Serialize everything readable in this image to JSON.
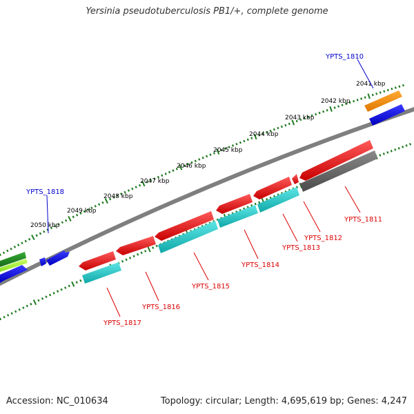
{
  "title": "Yersinia pseudotuberculosis PB1/+, complete genome",
  "footer": {
    "accession": "Accession: NC_010634",
    "summary": "Topology: circular; Length: 4,695,619 bp; Genes: 4,247"
  },
  "colors": {
    "backbone": "#7f7f7f",
    "tick": "#1f7a1f",
    "label_forward": "#0000cc",
    "label_reverse": "#dd0000"
  },
  "ruler": {
    "unit": "kbp",
    "labels": [
      "2041 kbp",
      "2042 kbp",
      "2043 kbp",
      "2044 kbp",
      "2045 kbp",
      "2046 kbp",
      "2047 kbp",
      "2048 kbp",
      "2049 kbp",
      "2050 kbp"
    ]
  },
  "genes": [
    {
      "id": "YPTS_1810",
      "strand": "+",
      "color": "#ee8800"
    },
    {
      "id": "YPTS_1811",
      "strand": "-",
      "color": "#606060"
    },
    {
      "id": "YPTS_1812",
      "strand": "-",
      "color": "#dd0000"
    },
    {
      "id": "YPTS_1813",
      "strand": "-",
      "color": "#dd0000"
    },
    {
      "id": "YPTS_1814",
      "strand": "-",
      "color": "#dd0000"
    },
    {
      "id": "YPTS_1815",
      "strand": "-",
      "color": "#dd0000"
    },
    {
      "id": "YPTS_1816",
      "strand": "-",
      "color": "#dd0000"
    },
    {
      "id": "YPTS_1817",
      "strand": "-",
      "color": "#dd0000"
    },
    {
      "id": "YPTS_1818",
      "strand": "+",
      "color": "#0000dd"
    }
  ]
}
